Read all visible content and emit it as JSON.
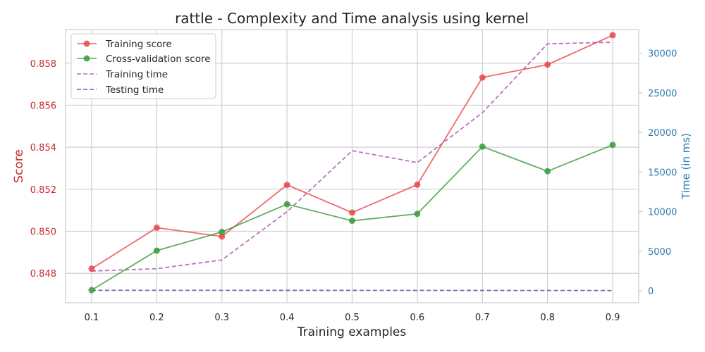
{
  "chart_data": {
    "type": "line",
    "title": "rattle - Complexity and Time analysis using  kernel",
    "xlabel": "Training examples",
    "ylabel_left": "Score",
    "ylabel_right": "Time (in ms)",
    "x": [
      0.1,
      0.2,
      0.3,
      0.4,
      0.5,
      0.6,
      0.7,
      0.8,
      0.9
    ],
    "x_ticks": [
      "0.1",
      "0.2",
      "0.3",
      "0.4",
      "0.5",
      "0.6",
      "0.7",
      "0.8",
      "0.9"
    ],
    "xlim": [
      0.06,
      0.94
    ],
    "ylim_left": [
      0.8466,
      0.8596
    ],
    "y_ticks_left": [
      "0.848",
      "0.850",
      "0.852",
      "0.854",
      "0.856",
      "0.858"
    ],
    "ylim_right": [
      -1500,
      33000
    ],
    "y_ticks_right": [
      "0",
      "5000",
      "10000",
      "15000",
      "20000",
      "25000",
      "30000"
    ],
    "grid": true,
    "legend_position": "top-left",
    "colors": {
      "training_score": "#e8464a",
      "cv_score": "#3a9a3a",
      "training_time": "#b36bb8",
      "testing_time": "#6a5fb3",
      "left_axis": "#c8282c",
      "right_axis": "#2f7ab0",
      "grid": "#d0d0d0"
    },
    "series": [
      {
        "name": "Training score",
        "axis": "left",
        "style": "solid-marker",
        "values": [
          0.84822,
          0.85017,
          0.84975,
          0.85221,
          0.85089,
          0.85222,
          0.85732,
          0.85793,
          0.85933
        ]
      },
      {
        "name": "Cross-validation score",
        "axis": "left",
        "style": "solid-marker",
        "values": [
          0.8472,
          0.84908,
          0.84997,
          0.85129,
          0.8505,
          0.85083,
          0.85403,
          0.85286,
          0.85411
        ]
      },
      {
        "name": "Training time",
        "axis": "right",
        "style": "dashed",
        "values": [
          2500,
          2800,
          3900,
          10000,
          17700,
          16200,
          22500,
          31200,
          31400
        ]
      },
      {
        "name": "Testing time",
        "axis": "right",
        "style": "dashed",
        "values": [
          70,
          70,
          65,
          60,
          60,
          55,
          50,
          45,
          40
        ]
      }
    ]
  }
}
